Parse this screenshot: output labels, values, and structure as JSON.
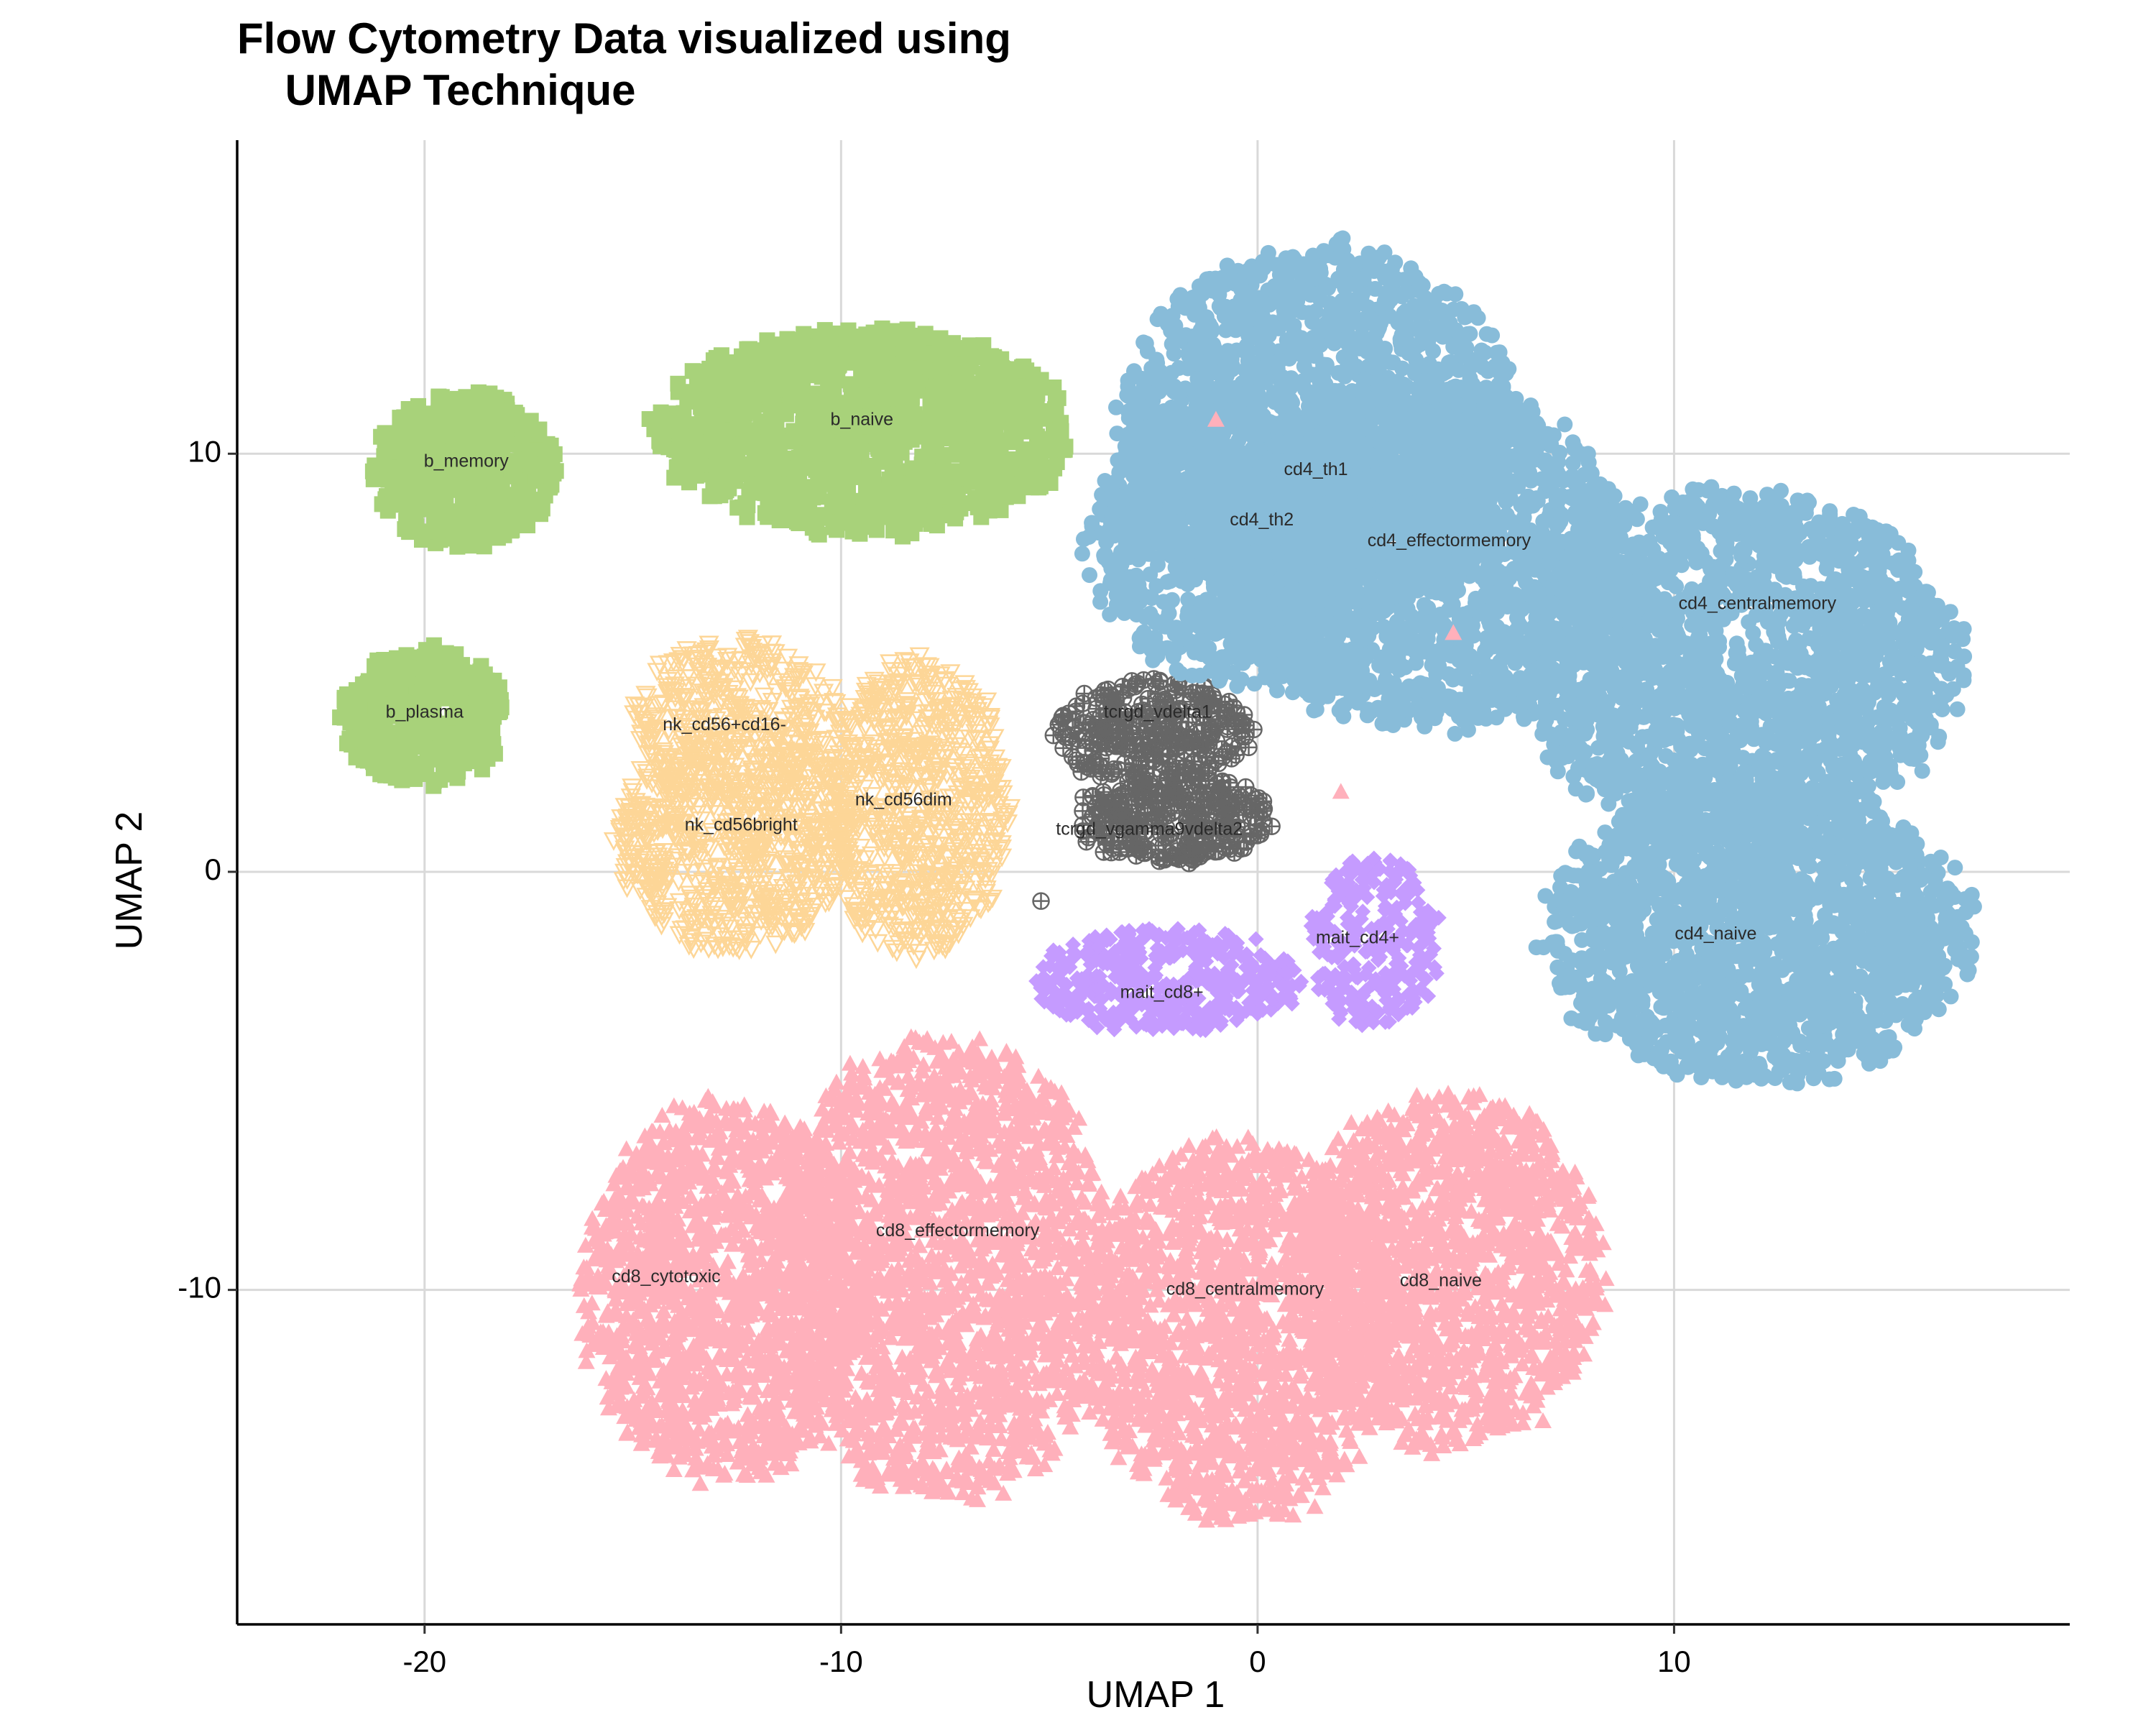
{
  "chart_data": {
    "type": "scatter",
    "title_line1": "Flow Cytometry Data visualized using",
    "title_line2": "    UMAP Technique",
    "xlabel": "UMAP 1",
    "ylabel": "UMAP 2",
    "xlim": [
      -24.5,
      19.5
    ],
    "ylim": [
      -18,
      17.5
    ],
    "xticks": [
      -20,
      -10,
      0,
      10
    ],
    "yticks": [
      -10,
      0,
      10
    ],
    "xtick_labels": [
      "-20",
      "-10",
      "0",
      "10"
    ],
    "ytick_labels": [
      "-10",
      "0",
      "10"
    ],
    "grid": true,
    "legend": "none",
    "colors": {
      "b_cells": "#a8d27a",
      "nk_cells": "#fdd697",
      "tcrgd_cells": "#666666",
      "mait_cells": "#c59bff",
      "cd8_cells": "#ffb0bb",
      "cd4_cells": "#88bcd9"
    },
    "groups": [
      {
        "name": "b_memory",
        "shape": "square",
        "color": "#a8d27a",
        "center": [
          -19.0,
          9.6
        ],
        "spread": [
          2.2,
          1.9
        ],
        "count": 520
      },
      {
        "name": "b_naive",
        "shape": "square",
        "color": "#a8d27a",
        "center": [
          -9.5,
          10.5
        ],
        "spread": [
          5.0,
          2.5
        ],
        "count": 1300
      },
      {
        "name": "b_plasma",
        "shape": "square",
        "color": "#a8d27a",
        "center": [
          -20.0,
          3.7
        ],
        "spread": [
          2.0,
          1.7
        ],
        "count": 400
      },
      {
        "name": "nk_cd56+cd16-",
        "shape": "triangle-down",
        "color": "#fdd697",
        "center": [
          -12.5,
          3.6
        ],
        "spread": [
          2.6,
          2.0
        ],
        "count": 380
      },
      {
        "name": "nk_cd56bright",
        "shape": "triangle-down",
        "color": "#fdd697",
        "center": [
          -12.5,
          0.8
        ],
        "spread": [
          2.9,
          2.7
        ],
        "count": 750
      },
      {
        "name": "nk_cd56dim",
        "shape": "triangle-down",
        "color": "#fdd697",
        "center": [
          -8.2,
          1.5
        ],
        "spread": [
          2.3,
          3.6
        ],
        "count": 750
      },
      {
        "name": "tcrgd_vdelta1",
        "shape": "circle-plus",
        "color": "#666666",
        "center": [
          -2.5,
          3.3
        ],
        "spread": [
          2.4,
          1.3
        ],
        "count": 320
      },
      {
        "name": "tcrgd_vgamma9vdelta2",
        "shape": "circle-plus",
        "color": "#666666",
        "center": [
          -2.0,
          1.3
        ],
        "spread": [
          2.4,
          1.1
        ],
        "count": 320
      },
      {
        "name": "mait_cd8+",
        "shape": "diamond",
        "color": "#c59bff",
        "center": [
          -2.2,
          -2.6
        ],
        "spread": [
          3.2,
          1.3
        ],
        "count": 420
      },
      {
        "name": "mait_cd4+",
        "shape": "diamond",
        "color": "#c59bff",
        "center": [
          2.8,
          -1.7
        ],
        "spread": [
          1.6,
          2.1
        ],
        "count": 260
      },
      {
        "name": "cd8_cytotoxic",
        "shape": "triangle-up",
        "color": "#ffb0bb",
        "center": [
          -12.8,
          -10.0
        ],
        "spread": [
          3.5,
          4.6
        ],
        "count": 1500
      },
      {
        "name": "cd8_effectormemory",
        "shape": "triangle-up",
        "color": "#ffb0bb",
        "center": [
          -7.5,
          -9.5
        ],
        "spread": [
          4.2,
          5.6
        ],
        "count": 1900
      },
      {
        "name": "cd8_centralmemory",
        "shape": "triangle-up",
        "color": "#ffb0bb",
        "center": [
          -0.5,
          -11.0
        ],
        "spread": [
          3.8,
          4.6
        ],
        "count": 1500
      },
      {
        "name": "cd8_naive",
        "shape": "triangle-up",
        "color": "#ffb0bb",
        "center": [
          4.5,
          -9.6
        ],
        "spread": [
          3.8,
          4.3
        ],
        "count": 1500
      },
      {
        "name": "cd4_th1",
        "shape": "circle",
        "color": "#88bcd9",
        "center": [
          1.5,
          10.5
        ],
        "spread": [
          4.8,
          4.6
        ],
        "count": 1700
      },
      {
        "name": "cd4_th2",
        "shape": "circle",
        "color": "#88bcd9",
        "center": [
          -0.5,
          8.0
        ],
        "spread": [
          3.6,
          3.6
        ],
        "count": 1000
      },
      {
        "name": "cd4_effectormemory",
        "shape": "circle",
        "color": "#88bcd9",
        "center": [
          4.0,
          7.5
        ],
        "spread": [
          5.0,
          4.2
        ],
        "count": 1700
      },
      {
        "name": "cd4_centralmemory",
        "shape": "circle",
        "color": "#88bcd9",
        "center": [
          11.5,
          5.0
        ],
        "spread": [
          5.4,
          4.2
        ],
        "count": 1900
      },
      {
        "name": "cd4_naive",
        "shape": "circle",
        "color": "#88bcd9",
        "center": [
          12.0,
          -1.5
        ],
        "spread": [
          5.2,
          3.6
        ],
        "count": 1700
      }
    ],
    "labels": [
      {
        "text": "b_memory",
        "x": -19.0,
        "y": 9.8
      },
      {
        "text": "b_naive",
        "x": -9.5,
        "y": 10.8
      },
      {
        "text": "b_plasma",
        "x": -20.0,
        "y": 3.8
      },
      {
        "text": "nk_cd56+cd16-",
        "x": -12.8,
        "y": 3.5
      },
      {
        "text": "nk_cd56bright",
        "x": -12.4,
        "y": 1.1
      },
      {
        "text": "nk_cd56dim",
        "x": -8.5,
        "y": 1.7
      },
      {
        "text": "tcrgd_vdelta1",
        "x": -2.4,
        "y": 3.8
      },
      {
        "text": "tcrgd_vgamma9vdelta2",
        "x": -2.6,
        "y": 1.0
      },
      {
        "text": "mait_cd8+",
        "x": -2.3,
        "y": -2.9
      },
      {
        "text": "mait_cd4+",
        "x": 2.4,
        "y": -1.6
      },
      {
        "text": "cd8_cytotoxic",
        "x": -14.2,
        "y": -9.7
      },
      {
        "text": "cd8_effectormemory",
        "x": -7.2,
        "y": -8.6
      },
      {
        "text": "cd8_centralmemory",
        "x": -0.3,
        "y": -10.0
      },
      {
        "text": "cd8_naive",
        "x": 4.4,
        "y": -9.8
      },
      {
        "text": "cd4_th1",
        "x": 1.4,
        "y": 9.6
      },
      {
        "text": "cd4_th2",
        "x": 0.1,
        "y": 8.4
      },
      {
        "text": "cd4_effectormemory",
        "x": 4.6,
        "y": 7.9
      },
      {
        "text": "cd4_centralmemory",
        "x": 12.0,
        "y": 6.4
      },
      {
        "text": "cd4_naive",
        "x": 11.0,
        "y": -1.5
      }
    ],
    "outliers": [
      {
        "shape": "triangle-up",
        "color": "#ffb0bb",
        "x": -1.0,
        "y": 10.8
      },
      {
        "shape": "triangle-up",
        "color": "#ffb0bb",
        "x": 4.7,
        "y": 5.7
      },
      {
        "shape": "triangle-up",
        "color": "#ffb0bb",
        "x": 2.0,
        "y": 1.9
      },
      {
        "shape": "circle-plus",
        "color": "#666666",
        "x": -5.2,
        "y": -0.7
      }
    ]
  }
}
